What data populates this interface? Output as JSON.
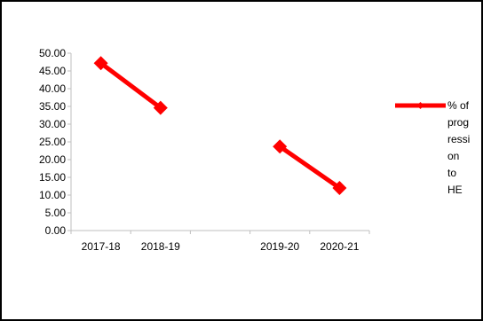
{
  "chart_data": {
    "type": "line",
    "categories": [
      "2017-18",
      "2018-19",
      "",
      "2019-20",
      "2020-21"
    ],
    "series": [
      {
        "name": "% of progression to HE",
        "legend_lines": [
          "% of",
          "prog",
          "ressi",
          "on",
          "to",
          "HE"
        ],
        "values": [
          47.2,
          34.6,
          null,
          23.7,
          12.0
        ],
        "color": "#ff0000"
      }
    ],
    "ylim": [
      0,
      50
    ],
    "yticks": [
      "0.00",
      "5.00",
      "10.00",
      "15.00",
      "20.00",
      "25.00",
      "30.00",
      "35.00",
      "40.00",
      "45.00",
      "50.00"
    ],
    "legend_position": "right",
    "grid": false,
    "title": "",
    "xlabel": "",
    "ylabel": ""
  }
}
